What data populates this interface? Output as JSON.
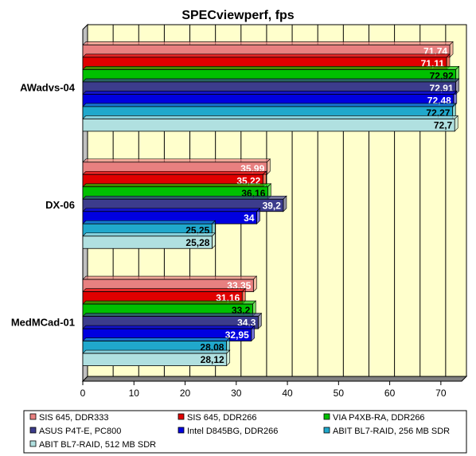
{
  "chart_data": {
    "type": "bar",
    "orientation": "horizontal",
    "title": "SPECviewperf, fps",
    "categories": [
      "AWadvs-04",
      "DX-06",
      "MedMCad-01"
    ],
    "xlim": [
      0,
      75
    ],
    "xticks": [
      0,
      10,
      20,
      30,
      40,
      50,
      60,
      70
    ],
    "grid": true,
    "legend_position": "bottom",
    "series": [
      {
        "name": "SIS 645, DDR333",
        "color": "#e88080",
        "label_color": "#ffffff",
        "values": [
          71.74,
          35.99,
          33.35
        ],
        "labels": [
          "71,74",
          "35,99",
          "33,35"
        ]
      },
      {
        "name": "SIS 645, DDR266",
        "color": "#e00000",
        "label_color": "#ffffff",
        "values": [
          71.11,
          35.22,
          31.16
        ],
        "labels": [
          "71,11",
          "35,22",
          "31,16"
        ]
      },
      {
        "name": "VIA P4XB-RA, DDR266",
        "color": "#00c000",
        "label_color": "#000000",
        "values": [
          72.92,
          36.16,
          33.2
        ],
        "labels": [
          "72,92",
          "36,16",
          "33,2"
        ]
      },
      {
        "name": "ASUS P4T-E, PC800",
        "color": "#3c3c8c",
        "label_color": "#ffffff",
        "values": [
          72.91,
          39.2,
          34.3
        ],
        "labels": [
          "72,91",
          "39,2",
          "34,3"
        ]
      },
      {
        "name": "Intel D845BG, DDR266",
        "color": "#0000e0",
        "label_color": "#ffffff",
        "values": [
          72.48,
          34,
          32.95
        ],
        "labels": [
          "72,48",
          "34",
          "32,95"
        ]
      },
      {
        "name": "ABIT BL7-RAID, 256 MB SDR",
        "color": "#20a8cc",
        "label_color": "#000000",
        "values": [
          72.27,
          25.25,
          28.08
        ],
        "labels": [
          "72,27",
          "25,25",
          "28,08"
        ]
      },
      {
        "name": "ABIT BL7-RAID, 512 MB SDR",
        "color": "#b0e0e0",
        "label_color": "#000000",
        "values": [
          72.7,
          25.28,
          28.12
        ],
        "labels": [
          "72,7",
          "25,28",
          "28,12"
        ]
      }
    ],
    "colors": {
      "plot_background": "#ffffcc",
      "grid": "#000000"
    }
  }
}
